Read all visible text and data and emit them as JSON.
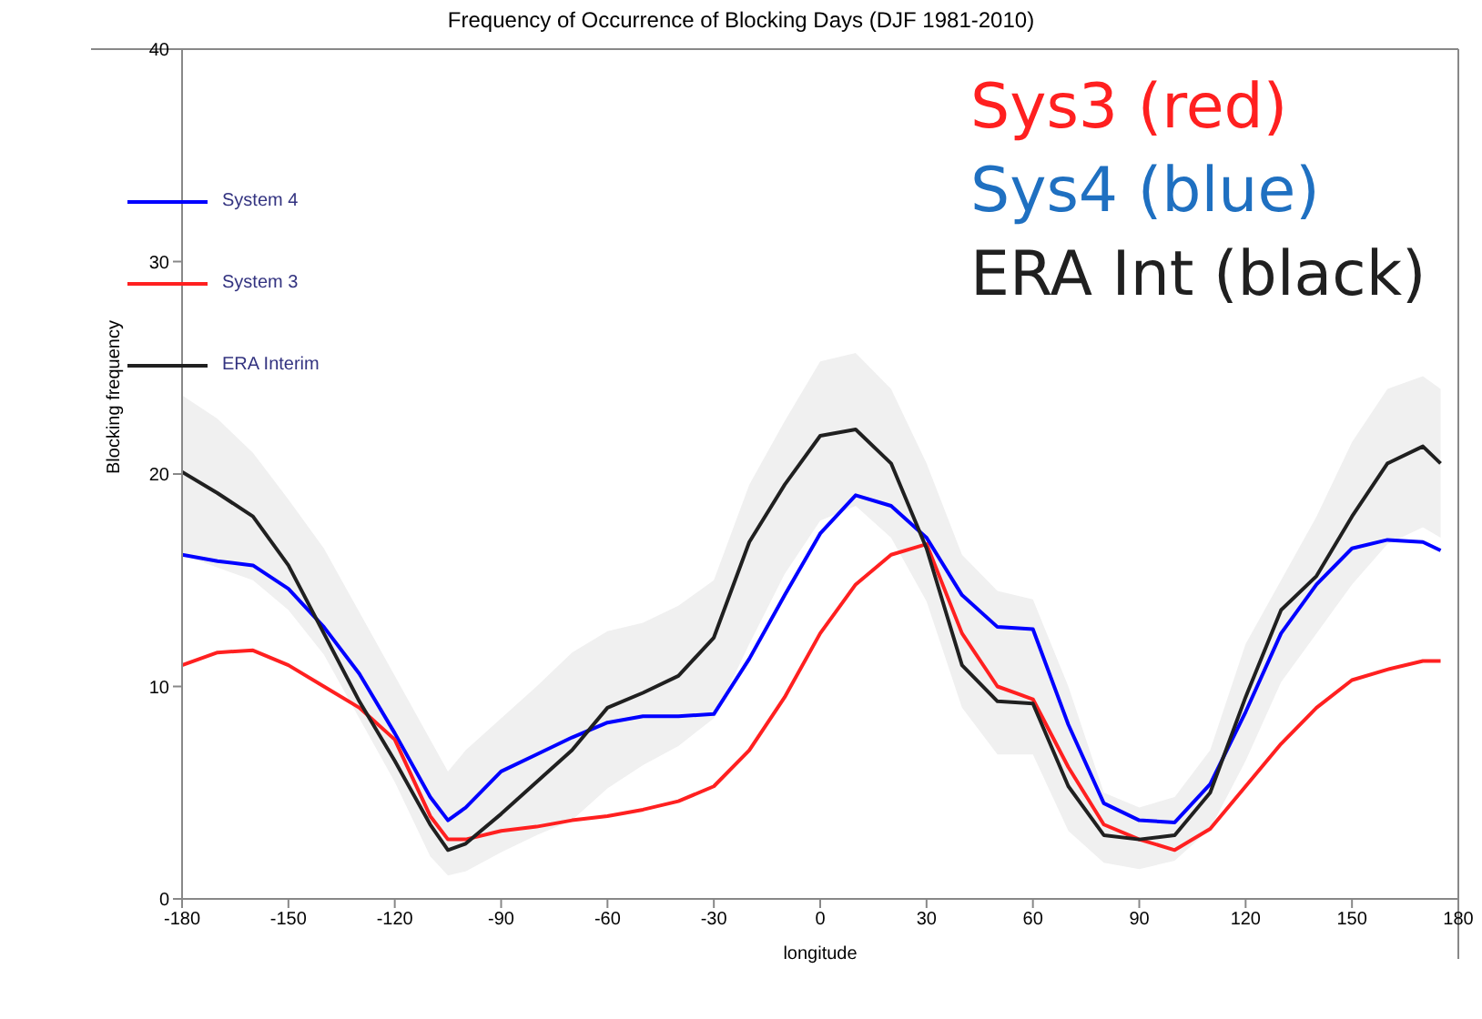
{
  "chart_data": {
    "type": "line",
    "title": "Frequency of Occurrence of Blocking Days (DJF 1981-2010)",
    "xlabel": "longitude",
    "ylabel": "Blocking frequency",
    "annotations": [
      "Sys3 (red)",
      "Sys4 (blue)",
      "ERA Int (black)"
    ],
    "x": [
      -180,
      -170,
      -160,
      -150,
      -140,
      -130,
      -120,
      -110,
      -105,
      -100,
      -90,
      -80,
      -70,
      -60,
      -50,
      -40,
      -30,
      -20,
      -10,
      0,
      10,
      20,
      30,
      40,
      50,
      60,
      70,
      80,
      90,
      100,
      110,
      120,
      130,
      140,
      150,
      160,
      170,
      175
    ],
    "series": [
      {
        "name": "System 4",
        "color": "#0000ff",
        "values": [
          16.2,
          15.9,
          15.7,
          14.6,
          12.8,
          10.6,
          7.8,
          4.8,
          3.7,
          4.3,
          6.0,
          6.8,
          7.6,
          8.3,
          8.6,
          8.6,
          8.7,
          11.3,
          14.3,
          17.2,
          19.0,
          18.5,
          17.0,
          14.3,
          12.8,
          12.7,
          8.2,
          4.5,
          3.7,
          3.6,
          5.4,
          8.8,
          12.5,
          14.8,
          16.5,
          16.9,
          16.8,
          16.4
        ]
      },
      {
        "name": "System 3",
        "color": "#ff2020",
        "values": [
          11.0,
          11.6,
          11.7,
          11.0,
          10.0,
          9.0,
          7.5,
          3.9,
          2.8,
          2.8,
          3.2,
          3.4,
          3.7,
          3.9,
          4.2,
          4.6,
          5.3,
          7.0,
          9.5,
          12.5,
          14.8,
          16.2,
          16.7,
          12.5,
          10.0,
          9.4,
          6.2,
          3.5,
          2.8,
          2.3,
          3.3,
          5.3,
          7.3,
          9.0,
          10.3,
          10.8,
          11.2,
          11.2
        ]
      },
      {
        "name": "ERA Interim",
        "color": "#202020",
        "values": [
          20.1,
          19.1,
          18.0,
          15.7,
          12.5,
          9.3,
          6.5,
          3.5,
          2.3,
          2.6,
          4.0,
          5.5,
          7.0,
          9.0,
          9.7,
          10.5,
          12.3,
          16.8,
          19.5,
          21.8,
          22.1,
          20.5,
          16.5,
          11.0,
          9.3,
          9.2,
          5.3,
          3.0,
          2.8,
          3.0,
          5.0,
          9.5,
          13.6,
          15.2,
          18.0,
          20.5,
          21.3,
          20.5
        ],
        "lower": [
          16.2,
          15.6,
          15.0,
          13.6,
          11.5,
          8.5,
          5.5,
          2.0,
          1.1,
          1.3,
          2.2,
          3.0,
          3.7,
          5.2,
          6.3,
          7.2,
          8.5,
          12.0,
          15.3,
          17.8,
          18.5,
          17.0,
          14.0,
          9.0,
          6.8,
          6.8,
          3.2,
          1.7,
          1.4,
          1.8,
          3.3,
          6.5,
          10.2,
          12.5,
          14.8,
          16.7,
          17.5,
          17.0
        ],
        "upper": [
          23.7,
          22.6,
          21.0,
          18.8,
          16.5,
          13.5,
          10.5,
          7.5,
          6.0,
          7.0,
          8.5,
          10.0,
          11.6,
          12.6,
          13.0,
          13.8,
          15.0,
          19.5,
          22.5,
          25.3,
          25.7,
          24.0,
          20.5,
          16.2,
          14.5,
          14.1,
          10.0,
          5.0,
          4.3,
          4.8,
          7.0,
          12.0,
          15.0,
          18.0,
          21.5,
          24.0,
          24.6,
          24.0
        ]
      }
    ],
    "xlim": [
      -180,
      180
    ],
    "xticks": [
      -180,
      -150,
      -120,
      -90,
      -60,
      -30,
      0,
      30,
      60,
      90,
      120,
      150,
      180
    ],
    "ylim": [
      0,
      40
    ],
    "yticks": [
      0,
      10,
      20,
      30,
      40
    ],
    "legend": "top left"
  }
}
